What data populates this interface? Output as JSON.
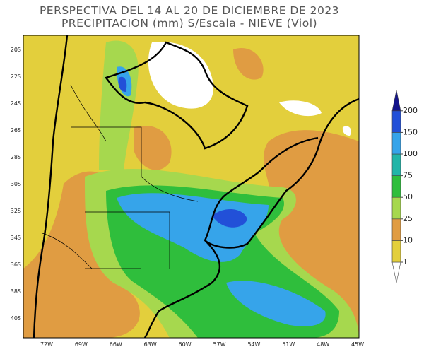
{
  "title": [
    "PERSPECTIVA DEL 14 AL 20 DE DICIEMBRE DE 2023",
    "PRECIPITACION (mm) S/Escala - NIEVE (Viol)"
  ],
  "lat_labels": [
    "20S",
    "22S",
    "24S",
    "26S",
    "28S",
    "30S",
    "32S",
    "34S",
    "36S",
    "38S",
    "40S"
  ],
  "lon_labels": [
    "72W",
    "69W",
    "66W",
    "63W",
    "60W",
    "57W",
    "54W",
    "51W",
    "48W",
    "45W"
  ],
  "colorbar": {
    "levels": [
      1,
      10,
      25,
      50,
      75,
      100,
      150,
      200
    ],
    "colors": [
      "#ffffff",
      "#e3cf3c",
      "#e09c42",
      "#a6d84e",
      "#2fbe3c",
      "#22b5a8",
      "#36a4ea",
      "#2250d8",
      "#14148c"
    ]
  }
}
